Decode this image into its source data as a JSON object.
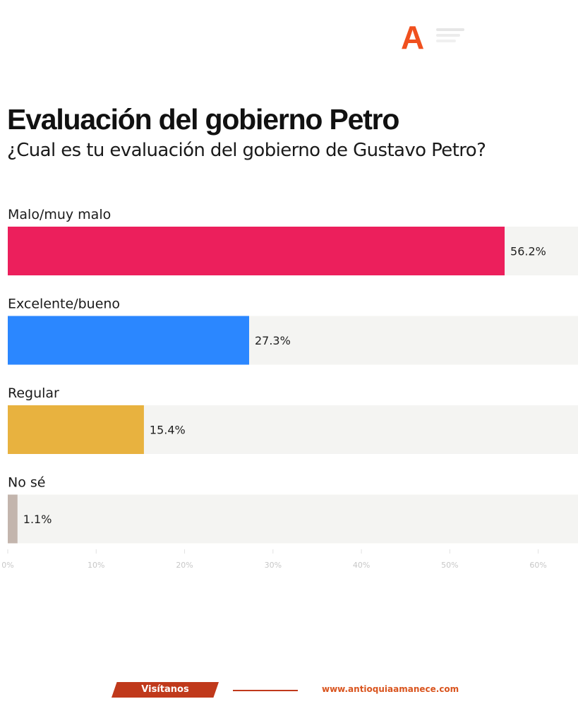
{
  "header": {
    "logo_letter": "A"
  },
  "chart_data": {
    "type": "bar",
    "orientation": "horizontal",
    "title": "Evaluación del gobierno Petro",
    "subtitle": "¿Cual es tu evaluación del gobierno de Gustavo Petro?",
    "categories": [
      "Malo/muy malo",
      "Excelente/bueno",
      "Regular",
      "No sé"
    ],
    "values": [
      56.2,
      27.3,
      15.4,
      1.1
    ],
    "value_labels": [
      "56.2%",
      "27.3%",
      "15.4%",
      "1.1%"
    ],
    "colors": [
      "#ec1f5c",
      "#2b87ff",
      "#e8b23f",
      "#c3b5ad"
    ],
    "background_color": "#f4f4f2",
    "xlim": [
      0,
      64.5
    ],
    "xticks": [
      0,
      10,
      20,
      30,
      40,
      50,
      60
    ],
    "xtick_labels": [
      "0%",
      "10%",
      "20%",
      "30%",
      "40%",
      "50%",
      "60%"
    ],
    "grid": false,
    "legend": "none"
  },
  "footer": {
    "tag_label": "Visítanos",
    "url": "www.antioquiaamanece.com"
  }
}
